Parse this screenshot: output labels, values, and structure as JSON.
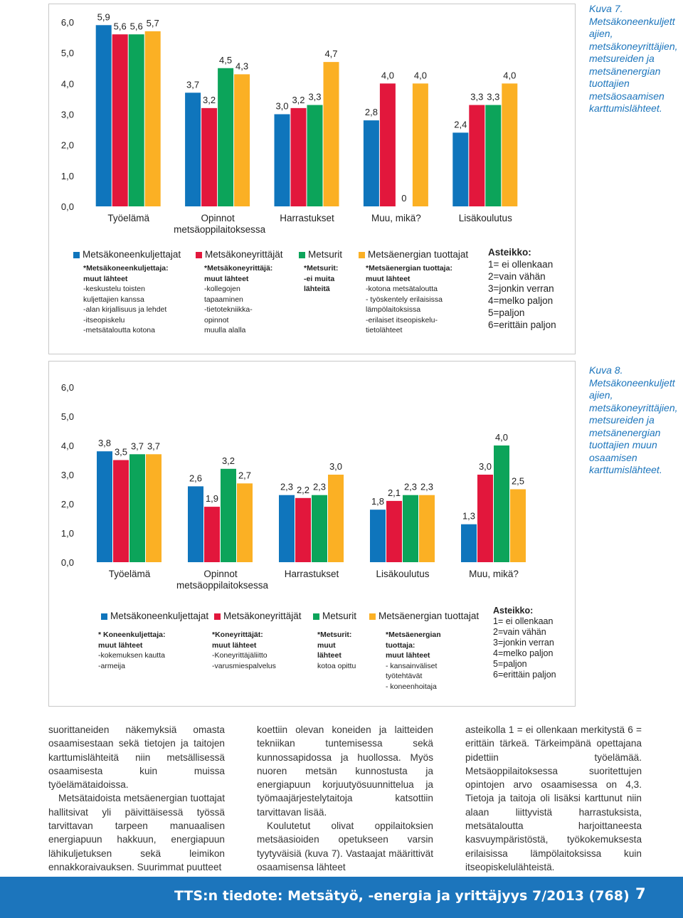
{
  "chart_data": [
    {
      "type": "bar",
      "categories": [
        "Työelämä",
        "Opinnot metsäoppilaitoksessa",
        "Harrastukset",
        "Muu, mikä?",
        "Lisäkoulutus"
      ],
      "series": [
        {
          "name": "Metsäkoneenkuljettajat",
          "color": "#0f75bc",
          "values": [
            5.9,
            3.7,
            3.0,
            2.8,
            2.4
          ],
          "value_labels": [
            "5,9",
            "3,7",
            "3,0",
            "2,8",
            "2,4"
          ]
        },
        {
          "name": "Metsäkoneyrittäjät",
          "color": "#e2173c",
          "values": [
            5.6,
            3.2,
            3.2,
            4.0,
            3.3
          ],
          "value_labels": [
            "5,6",
            "3,2",
            "3,2",
            "4,0",
            "3,3"
          ]
        },
        {
          "name": "Metsurit",
          "color": "#0ca45a",
          "values": [
            5.6,
            4.5,
            3.3,
            0,
            3.3
          ],
          "value_labels": [
            "5,6",
            "4,5",
            "3,3",
            "0",
            "3,3"
          ]
        },
        {
          "name": "Metsäenergian tuottajat",
          "color": "#fbb024",
          "values": [
            5.7,
            4.3,
            4.7,
            4.0,
            4.0
          ],
          "value_labels": [
            "5,7",
            "4,3",
            "4,7",
            "4,0",
            "4,0"
          ]
        }
      ],
      "ylim": [
        0,
        6
      ],
      "yticks": [
        {
          "value": 0,
          "label": "0,0"
        },
        {
          "value": 1,
          "label": "1,0"
        },
        {
          "value": 2,
          "label": "2,0"
        },
        {
          "value": 3,
          "label": "3,0"
        },
        {
          "value": 4,
          "label": "4,0"
        },
        {
          "value": 5,
          "label": "5,0"
        },
        {
          "value": 6,
          "label": "6,0"
        }
      ],
      "notes": [
        {
          "bold": [
            "*Metsäkoneenkuljettaja:",
            "muut lähteet"
          ],
          "lines": [
            "-keskustelu toisten",
            "kuljettajien kanssa",
            "-alan kirjallisuus ja lehdet",
            "-itseopiskelu",
            "-metsätaloutta kotona"
          ]
        },
        {
          "bold": [
            "*Metsäkoneyrittäjä:",
            "muut lähteet"
          ],
          "lines": [
            "-kollegojen",
            "tapaaminen",
            "-tietotekniikka-",
            "opinnot",
            "muulla alalla"
          ]
        },
        {
          "bold": [
            "*Metsurit:",
            "-ei muita",
            "lähteitä"
          ],
          "lines": []
        },
        {
          "bold": [
            "*Metsäenergian tuottaja:",
            "muut lähteet"
          ],
          "lines": [
            "-kotona metsätaloutta",
            "- työskentely erilaisissa",
            "lämpölaitoksissa",
            "-erilaiset itseopiskelu-",
            "tietolähteet"
          ]
        }
      ],
      "scale": {
        "title": "Asteikko:",
        "lines": [
          "1= ei ollenkaan",
          "2=vain vähän",
          "3=jonkin verran",
          "4=melko paljon",
          "5=paljon",
          "6=erittäin paljon"
        ]
      },
      "caption": "Kuva 7. Metsäkoneenkuljettajien, metsäkoneyrittäjien, metsureiden ja metsänenergian tuottajien metsäosaamisen karttumislähteet."
    },
    {
      "type": "bar",
      "categories": [
        "Työelämä",
        "Opinnot metsäoppilaitoksessa",
        "Harrastukset",
        "Lisäkoulutus",
        "Muu, mikä?"
      ],
      "series": [
        {
          "name": "Metsäkoneenkuljettajat",
          "color": "#0f75bc",
          "values": [
            3.8,
            2.6,
            2.3,
            1.8,
            1.3
          ],
          "value_labels": [
            "3,8",
            "2,6",
            "2,3",
            "1,8",
            "1,3"
          ]
        },
        {
          "name": "Metsäkoneyrittäjät",
          "color": "#e2173c",
          "values": [
            3.5,
            1.9,
            2.2,
            2.1,
            3.0
          ],
          "value_labels": [
            "3,5",
            "1,9",
            "2,2",
            "2,1",
            "3,0"
          ]
        },
        {
          "name": "Metsurit",
          "color": "#0ca45a",
          "values": [
            3.7,
            3.2,
            2.3,
            2.3,
            4.0
          ],
          "value_labels": [
            "3,7",
            "3,2",
            "2,3",
            "2,3",
            "4,0"
          ]
        },
        {
          "name": "Metsäenergian tuottajat",
          "color": "#fbb024",
          "values": [
            3.7,
            2.7,
            3.0,
            2.3,
            2.5
          ],
          "value_labels": [
            "3,7",
            "2,7",
            "3,0",
            "2,3",
            "2,5"
          ]
        }
      ],
      "ylim": [
        0,
        6
      ],
      "yticks": [
        {
          "value": 0,
          "label": "0,0"
        },
        {
          "value": 1,
          "label": "1,0"
        },
        {
          "value": 2,
          "label": "2,0"
        },
        {
          "value": 3,
          "label": "3,0"
        },
        {
          "value": 4,
          "label": "4,0"
        },
        {
          "value": 5,
          "label": "5,0"
        },
        {
          "value": 6,
          "label": "6,0"
        }
      ],
      "notes": [
        {
          "bold": [
            "* Koneenkuljettaja:",
            "muut lähteet"
          ],
          "lines": [
            "-kokemuksen kautta",
            "-armeija"
          ]
        },
        {
          "bold": [
            "*Koneyrittäjät:",
            "muut lähteet"
          ],
          "lines": [
            "-Koneyrittäjäliitto",
            "-varusmiespalvelus"
          ]
        },
        {
          "bold": [
            "*Metsurit:",
            "muut",
            "lähteet"
          ],
          "lines": [
            "kotoa opittu"
          ]
        },
        {
          "bold": [
            "*Metsäenergian",
            "tuottaja:",
            "muut lähteet"
          ],
          "lines": [
            "- kansainväliset",
            "työtehtävät",
            "- koneenhoitaja"
          ]
        }
      ],
      "scale": {
        "title": "Asteikko:",
        "lines": [
          "1= ei ollenkaan",
          "2=vain vähän",
          "3=jonkin verran",
          "4=melko paljon",
          "5=paljon",
          "6=erittäin paljon"
        ]
      },
      "caption": "Kuva 8. Metsäkoneenkuljettajien, metsäkoneyrittäjien, metsureiden ja metsänenergian tuottajien muun osaamisen karttumislähteet."
    }
  ],
  "body": [
    [
      "suorittaneiden näkemyksiä omasta osaamisestaan sekä tietojen ja taitojen karttumislähteitä niin metsällisessä osaamisesta kuin muissa työelämätaidoissa.",
      "Metsätaidoista metsäenergian tuottajat hallitsivat yli päivittäisessä työssä tarvittavan tarpeen manuaalisen energiapuun hakkuun, energiapuun lähikuljetuksen sekä leimikon ennakkoraivauksen. Suurimmat puutteet"
    ],
    [
      "koettiin olevan koneiden ja laitteiden tekniikan tuntemisessa sekä kunnossapidossa ja huollossa. Myös nuoren metsän kunnostusta ja energiapuun korjuutyösuunnittelua ja työmaajärjestelytaitoja katsottiin tarvittavan lisää.",
      "Koulutetut olivat oppilaitoksien metsäasioiden opetukseen varsin tyytyväisiä (kuva 7). Vastaajat määrittivät osaamisensa lähteet"
    ],
    [
      "asteikolla 1 = ei ollenkaan merkitystä 6 = erittäin tärkeä. Tärkeimpänä opettajana pidettiin työelämää. Metsäoppilaitoksessa suoritettujen opintojen arvo osaamisessa on 4,3. Tietoja ja taitoja oli lisäksi karttunut niin alaan liittyvistä harrastuksista, metsätaloutta harjoittaneesta kasvuympäristöstä, työkokemuksesta erilaisissa lämpölaitoksissa kuin itseopiskelulähteistä."
    ]
  ],
  "footer": {
    "title": "TTS:n tiedote: Metsätyö, -energia ja yrittäjyys 7/2013 (768)",
    "page": "7"
  }
}
